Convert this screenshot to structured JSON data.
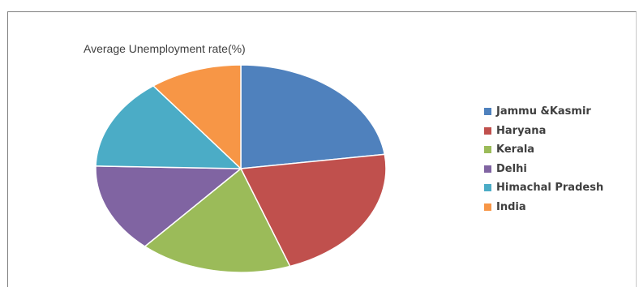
{
  "chart_data": {
    "type": "pie",
    "title": "Average Unemployment rate(%)",
    "categories": [
      "Jammu &Kasmir",
      "Haryana",
      "Kerala",
      "Delhi",
      "Himachal Pradesh",
      "India"
    ],
    "values": [
      22.8,
      21.7,
      17.0,
      13.9,
      14.3,
      10.3
    ],
    "colors": [
      "#4f81bd",
      "#c0504d",
      "#9bbb59",
      "#8064a2",
      "#4bacc6",
      "#f79646"
    ],
    "legend_position": "right"
  }
}
